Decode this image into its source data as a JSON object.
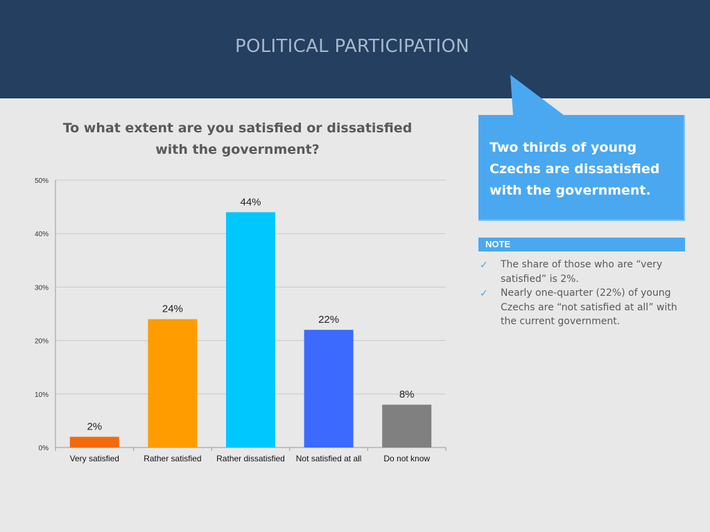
{
  "header": {
    "title": "POLITICAL PARTICIPATION"
  },
  "chart_question": "To what extent are you satisfied or dissatisfied with the government?",
  "callout": {
    "text": "Two thirds of young Czechs are dissatisfied with the government."
  },
  "note": {
    "label": "NOTE",
    "items": [
      "The share of those who are “very satisfied” is 2%.",
      "Nearly one-quarter (22%) of young Czechs are “not satisfied at all” with the current government."
    ]
  },
  "colors": {
    "header_bg": "#243f60",
    "callout_bg": "#4aa8f0",
    "bars": [
      "#f26a0a",
      "#ff9c00",
      "#00c8ff",
      "#3c6aff",
      "#808080"
    ]
  },
  "icons": {
    "note_bullet": "checkmark-icon"
  },
  "chart_data": {
    "type": "bar",
    "categories": [
      "Very satisfied",
      "Rather satisfied",
      "Rather dissatisfied",
      "Not satisfied at all",
      "Do not know"
    ],
    "values": [
      2,
      24,
      44,
      22,
      8
    ],
    "data_labels": [
      "2%",
      "24%",
      "44%",
      "22%",
      "8%"
    ],
    "ylim": [
      0,
      50
    ],
    "yticks": [
      0,
      10,
      20,
      30,
      40,
      50
    ],
    "ytick_labels": [
      "0%",
      "10%",
      "20%",
      "30%",
      "40%",
      "50%"
    ],
    "grid": true,
    "legend": "none"
  }
}
